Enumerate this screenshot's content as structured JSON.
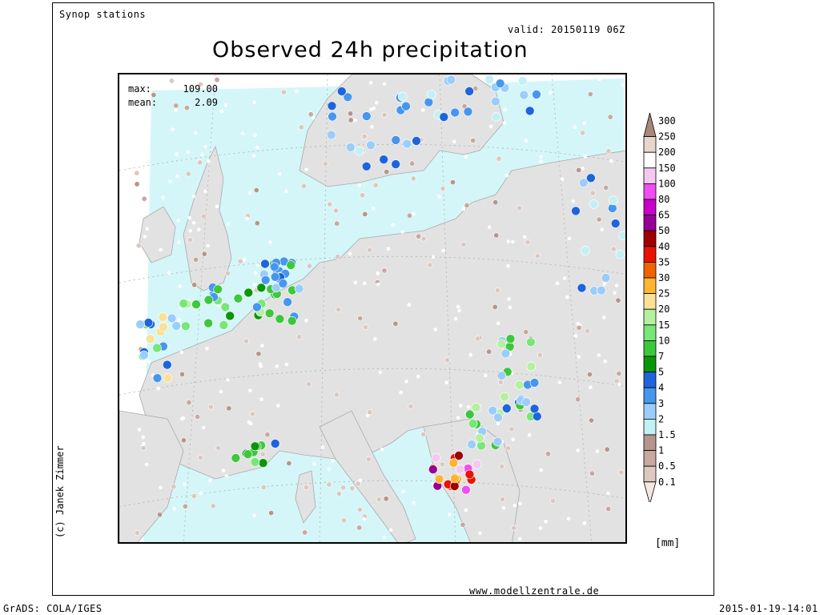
{
  "header": {
    "source": "Synop stations",
    "valid": "valid: 20150119 06Z",
    "title": "Observed 24h precipitation"
  },
  "stats": {
    "max_label": "max:",
    "max_value": "109.00",
    "mean_label": "mean:",
    "mean_value": "2.09"
  },
  "author": "(c) Janek Zimmer",
  "legend": {
    "unit": "[mm]",
    "levels": [
      {
        "label": "300",
        "color": "#a8887a"
      },
      {
        "label": "250",
        "color": "#e6d6cc"
      },
      {
        "label": "200",
        "color": "#ffffff"
      },
      {
        "label": "150",
        "color": "#f5c8f0"
      },
      {
        "label": "100",
        "color": "#f04cf0"
      },
      {
        "label": "80",
        "color": "#c800c8"
      },
      {
        "label": "65",
        "color": "#960096"
      },
      {
        "label": "50",
        "color": "#a00000"
      },
      {
        "label": "40",
        "color": "#e61400"
      },
      {
        "label": "35",
        "color": "#f06400"
      },
      {
        "label": "30",
        "color": "#ffb432"
      },
      {
        "label": "25",
        "color": "#fae196"
      },
      {
        "label": "20",
        "color": "#b4f0a0"
      },
      {
        "label": "15",
        "color": "#78e678"
      },
      {
        "label": "10",
        "color": "#3cc83c"
      },
      {
        "label": "7",
        "color": "#0a960a"
      },
      {
        "label": "5",
        "color": "#1e64dc"
      },
      {
        "label": "4",
        "color": "#4696f0"
      },
      {
        "label": "3",
        "color": "#9bcdfa"
      },
      {
        "label": "2",
        "color": "#c3f0f5"
      },
      {
        "label": "1.5",
        "color": "#b4968c"
      },
      {
        "label": "1",
        "color": "#c8a8a0"
      },
      {
        "label": "0.5",
        "color": "#dcc8c0"
      },
      {
        "label": "0.1",
        "color": "#f5e6e1"
      }
    ]
  },
  "footer": {
    "website": "www.modellzentrale.de",
    "left": "GrADS: COLA/IGES",
    "right": "2015-01-19-14:01"
  }
}
